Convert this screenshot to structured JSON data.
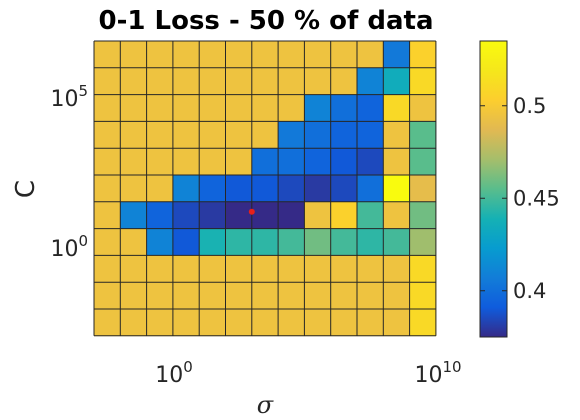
{
  "chart_data": {
    "type": "heatmap",
    "title": "0-1 Loss - 50 % of data",
    "xlabel": "σ",
    "ylabel": "C",
    "x_scale": "log",
    "y_scale": "log",
    "x_ticks": [
      {
        "base": "10",
        "exp": "0"
      },
      {
        "base": "10",
        "exp": "10"
      }
    ],
    "y_ticks": [
      {
        "base": "10",
        "exp": "5"
      },
      {
        "base": "10",
        "exp": "0"
      }
    ],
    "colorbar": {
      "colormap": "parula",
      "range": [
        0.375,
        0.535
      ],
      "ticks": [
        "0.4",
        "0.45",
        "0.5"
      ],
      "tick_values": [
        0.4,
        0.45,
        0.5
      ]
    },
    "grid": true,
    "rows_top_to_bottom": true,
    "values": [
      [
        0.495,
        0.495,
        0.495,
        0.495,
        0.495,
        0.495,
        0.495,
        0.495,
        0.495,
        0.495,
        0.495,
        0.405,
        0.505
      ],
      [
        0.495,
        0.495,
        0.495,
        0.495,
        0.495,
        0.495,
        0.495,
        0.495,
        0.495,
        0.495,
        0.41,
        0.435,
        0.51
      ],
      [
        0.495,
        0.495,
        0.495,
        0.495,
        0.495,
        0.495,
        0.495,
        0.495,
        0.41,
        0.4,
        0.395,
        0.51,
        0.495
      ],
      [
        0.495,
        0.495,
        0.495,
        0.495,
        0.495,
        0.495,
        0.495,
        0.405,
        0.4,
        0.395,
        0.395,
        0.495,
        0.455
      ],
      [
        0.495,
        0.495,
        0.495,
        0.495,
        0.495,
        0.495,
        0.4,
        0.4,
        0.395,
        0.39,
        0.385,
        0.495,
        0.455
      ],
      [
        0.495,
        0.495,
        0.495,
        0.41,
        0.395,
        0.39,
        0.39,
        0.385,
        0.38,
        0.385,
        0.4,
        0.535,
        0.49
      ],
      [
        0.495,
        0.41,
        0.395,
        0.385,
        0.38,
        0.375,
        0.375,
        0.375,
        0.495,
        0.505,
        0.45,
        0.495,
        0.46
      ],
      [
        0.495,
        0.495,
        0.41,
        0.39,
        0.44,
        0.445,
        0.445,
        0.45,
        0.46,
        0.45,
        0.445,
        0.45,
        0.47
      ],
      [
        0.495,
        0.495,
        0.495,
        0.495,
        0.495,
        0.495,
        0.495,
        0.495,
        0.495,
        0.495,
        0.495,
        0.495,
        0.51
      ],
      [
        0.495,
        0.495,
        0.495,
        0.495,
        0.495,
        0.495,
        0.495,
        0.495,
        0.495,
        0.495,
        0.495,
        0.495,
        0.51
      ],
      [
        0.495,
        0.495,
        0.495,
        0.495,
        0.495,
        0.495,
        0.495,
        0.495,
        0.495,
        0.495,
        0.495,
        0.495,
        0.51
      ]
    ],
    "marker": {
      "row": 6,
      "col": 6,
      "color": "#e8201a"
    }
  }
}
